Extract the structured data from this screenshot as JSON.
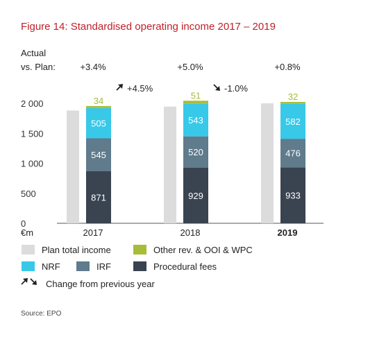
{
  "chart_data": {
    "type": "bar",
    "title": "Figure 14: Standardised operating income 2017 – 2019",
    "unit_label": "€m",
    "ylim": [
      0,
      2000
    ],
    "yticks": [
      "0",
      "500",
      "1 000",
      "1 500",
      "2 000"
    ],
    "categories": [
      "2017",
      "2018",
      "2019"
    ],
    "plan_total": [
      1880,
      1945,
      2000
    ],
    "series": [
      {
        "name": "Procedural fees",
        "values": [
          871,
          929,
          933
        ],
        "color": "#3a4350"
      },
      {
        "name": "IRF",
        "values": [
          545,
          520,
          476
        ],
        "color": "#5f7b8c"
      },
      {
        "name": "NRF",
        "values": [
          505,
          543,
          582
        ],
        "color": "#38c8e8"
      },
      {
        "name": "Other rev. & OOI & WPC",
        "values": [
          34,
          51,
          32
        ],
        "color": "#a6bd38"
      }
    ],
    "actual_vs_plan_label": [
      "Actual",
      "vs. Plan:"
    ],
    "actual_vs_plan": [
      "+3.4%",
      "+5.0%",
      "+0.8%"
    ],
    "change_from_previous_year": [
      {
        "value": "+4.5%",
        "direction": "up"
      },
      {
        "value": "-1.0%",
        "direction": "down"
      }
    ],
    "legend": {
      "plan_total_income": "Plan total income",
      "other": "Other rev. & OOI & WPC",
      "nrf": "NRF",
      "irf": "IRF",
      "procedural_fees": "Procedural fees",
      "change": "Change from previous year"
    },
    "colors": {
      "plan": "#dcdcdc",
      "title": "#c0202a",
      "axis": "#555555"
    },
    "source": "Source: EPO"
  }
}
